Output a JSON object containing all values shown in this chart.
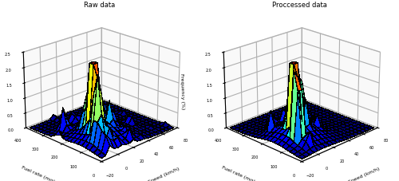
{
  "title_left": "Raw data",
  "title_right": "Proccessed data",
  "xlabel": "Speed (km/h)",
  "ylabel": "Fuel rate (mg/s)",
  "zlabel": "Frequency (%)",
  "speed_bins": [
    -20,
    -15,
    -10,
    -5,
    0,
    5,
    10,
    15,
    20,
    25,
    30,
    35,
    40,
    45,
    50,
    55,
    60,
    65,
    70,
    75,
    80
  ],
  "fuel_bins": [
    0,
    20,
    40,
    60,
    80,
    100,
    120,
    140,
    160,
    180,
    200,
    220,
    240,
    260,
    280,
    300,
    320,
    340,
    360,
    380,
    400
  ],
  "zlim": [
    0,
    2.5
  ],
  "zticks": [
    0,
    0.5,
    1.0,
    1.5,
    2.0,
    2.5
  ],
  "fuel_ticks": [
    0,
    100,
    200,
    300,
    400
  ],
  "speed_ticks": [
    -20,
    0,
    20,
    40,
    60,
    80
  ],
  "background_color": "#ffffff",
  "pane_color": "#f0f0f0",
  "colormap": "jet",
  "elev": 22,
  "azim": 225
}
